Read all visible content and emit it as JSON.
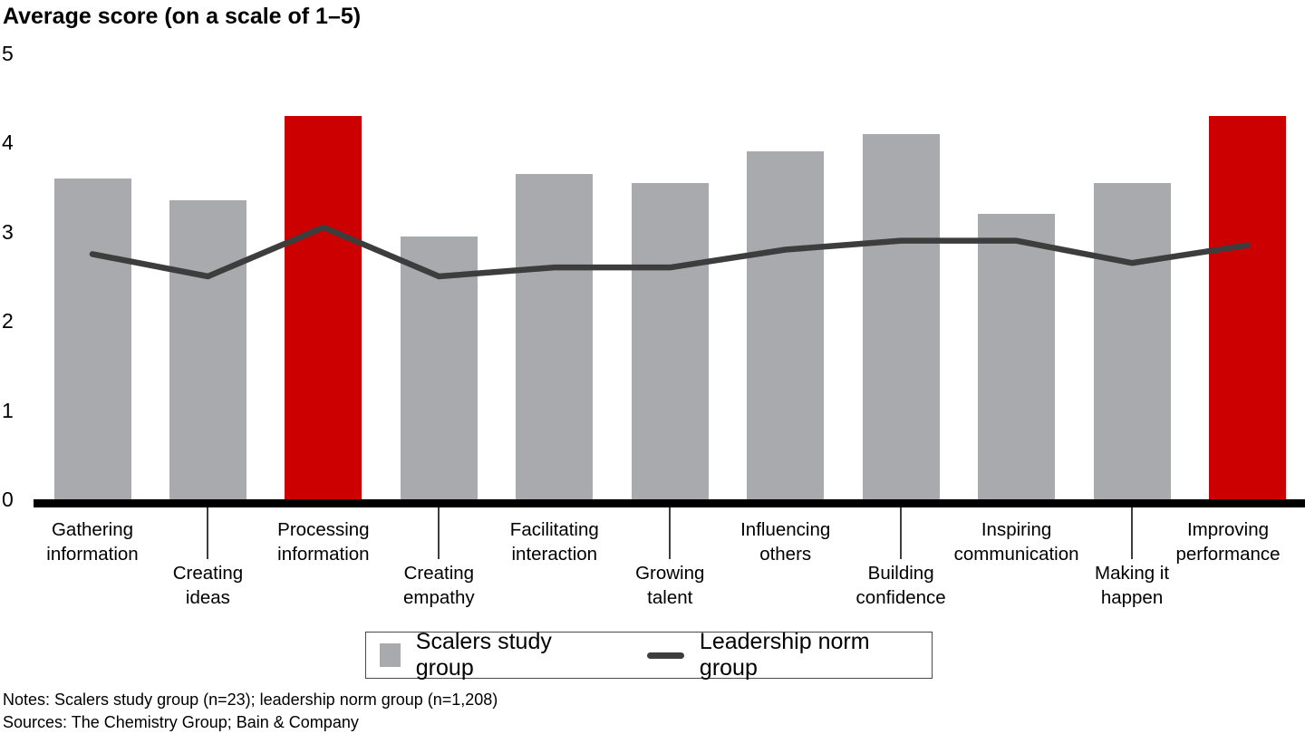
{
  "title": "Average score (on a scale of 1–5)",
  "chart_data": {
    "type": "bar",
    "title": "Average score (on a scale of 1–5)",
    "categories": [
      "Gathering information",
      "Creating ideas",
      "Processing information",
      "Creating empathy",
      "Facilitating interaction",
      "Growing talent",
      "Influencing others",
      "Building confidence",
      "Inspiring communication",
      "Making it happen",
      "Improving performance"
    ],
    "category_label_lines": [
      [
        "Gathering",
        "information"
      ],
      [
        "Creating",
        "ideas"
      ],
      [
        "Processing",
        "information"
      ],
      [
        "Creating",
        "empathy"
      ],
      [
        "Facilitating",
        "interaction"
      ],
      [
        "Growing",
        "talent"
      ],
      [
        "Influencing",
        "others"
      ],
      [
        "Building",
        "confidence"
      ],
      [
        "Inspiring",
        "communication"
      ],
      [
        "Making it",
        "happen"
      ],
      [
        "Improving",
        "performance"
      ]
    ],
    "series": [
      {
        "name": "Scalers study group",
        "type": "bar",
        "values": [
          3.6,
          3.35,
          4.3,
          2.95,
          3.65,
          3.55,
          3.9,
          4.1,
          3.2,
          3.55,
          4.3
        ],
        "highlight_indexes": [
          2,
          10
        ]
      },
      {
        "name": "Leadership norm group",
        "type": "line",
        "values": [
          2.75,
          2.5,
          3.05,
          2.5,
          2.6,
          2.6,
          2.8,
          2.9,
          2.9,
          2.65,
          2.85
        ]
      }
    ],
    "y_ticks": [
      0,
      1,
      2,
      3,
      4,
      5
    ],
    "ylim": [
      0,
      5
    ],
    "grid": false,
    "legend_position": "bottom",
    "colors": {
      "bar": "#a8aaad",
      "highlight": "#cc0000",
      "line": "#3d3d3d",
      "axis": "#000000"
    }
  },
  "legend": {
    "items": [
      {
        "label": "Scalers study group",
        "swatch": "bar"
      },
      {
        "label": "Leadership norm group",
        "swatch": "line"
      }
    ]
  },
  "notes": "Notes: Scalers study group (n=23); leadership norm group (n=1,208)",
  "sources": "Sources: The Chemistry Group; Bain & Company"
}
